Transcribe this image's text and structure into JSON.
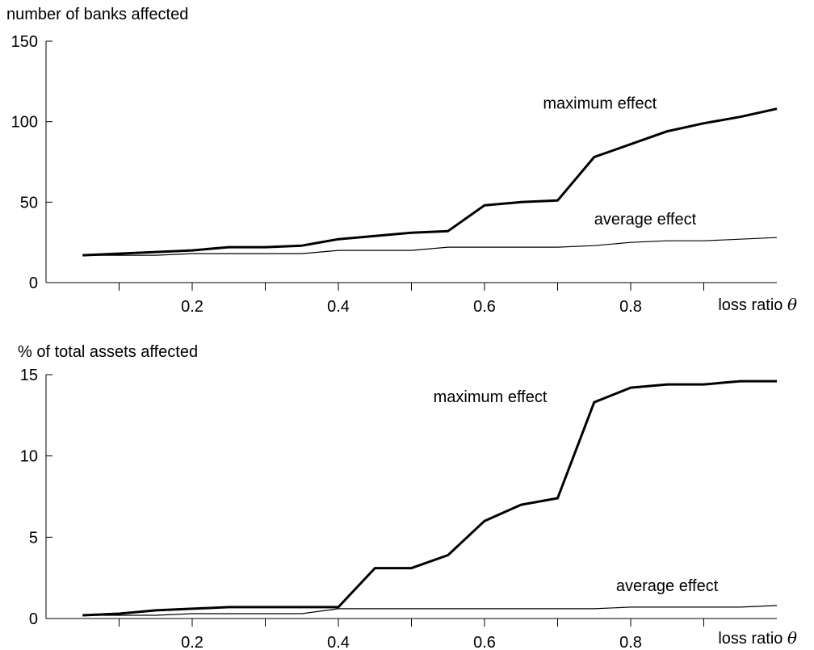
{
  "chart_data": [
    {
      "type": "line",
      "ylabel": "number of banks affected",
      "xlabel": "loss ratio",
      "xlabel_symbol": "θ",
      "xlim": [
        0.0,
        1.0
      ],
      "ylim": [
        0,
        150
      ],
      "xticks": [
        0.2,
        0.4,
        0.6,
        0.8
      ],
      "xtick_labels": [
        "0.2",
        "0.4",
        "0.6",
        "0.8"
      ],
      "xticks_minor": [
        0.1,
        0.3,
        0.5,
        0.7,
        0.9
      ],
      "yticks": [
        0,
        50,
        100,
        150
      ],
      "ytick_labels": [
        "0",
        "50",
        "100",
        "150"
      ],
      "grid": false,
      "x": [
        0.05,
        0.1,
        0.15,
        0.2,
        0.25,
        0.3,
        0.35,
        0.4,
        0.45,
        0.5,
        0.55,
        0.6,
        0.65,
        0.7,
        0.75,
        0.8,
        0.85,
        0.9,
        0.95,
        1.0
      ],
      "series": [
        {
          "name": "maximum effect",
          "style": "thick",
          "values": [
            17,
            18,
            19,
            20,
            22,
            22,
            23,
            27,
            29,
            31,
            32,
            48,
            50,
            51,
            78,
            86,
            94,
            99,
            103,
            108
          ],
          "label_anchor": {
            "x": 0.68,
            "y": 108
          }
        },
        {
          "name": "average effect",
          "style": "thin",
          "values": [
            17,
            17,
            17,
            18,
            18,
            18,
            18,
            20,
            20,
            20,
            22,
            22,
            22,
            22,
            23,
            25,
            26,
            26,
            27,
            28
          ],
          "label_anchor": {
            "x": 0.75,
            "y": 36
          }
        }
      ]
    },
    {
      "type": "line",
      "ylabel": "% of total assets affected",
      "xlabel": "loss ratio",
      "xlabel_symbol": "θ",
      "xlim": [
        0.0,
        1.0
      ],
      "ylim": [
        0,
        15
      ],
      "xticks": [
        0.2,
        0.4,
        0.6,
        0.8
      ],
      "xtick_labels": [
        "0.2",
        "0.4",
        "0.6",
        "0.8"
      ],
      "xticks_minor": [
        0.1,
        0.3,
        0.5,
        0.7,
        0.9
      ],
      "yticks": [
        0,
        5,
        10,
        15
      ],
      "ytick_labels": [
        "0",
        "5",
        "10",
        "15"
      ],
      "grid": false,
      "x": [
        0.05,
        0.1,
        0.15,
        0.2,
        0.25,
        0.3,
        0.35,
        0.4,
        0.45,
        0.5,
        0.55,
        0.6,
        0.65,
        0.7,
        0.75,
        0.8,
        0.85,
        0.9,
        0.95,
        1.0
      ],
      "series": [
        {
          "name": "maximum effect",
          "style": "thick",
          "values": [
            0.2,
            0.3,
            0.5,
            0.6,
            0.7,
            0.7,
            0.7,
            0.7,
            3.1,
            3.1,
            3.9,
            6.0,
            7.0,
            7.4,
            13.3,
            14.2,
            14.4,
            14.4,
            14.6,
            14.6
          ],
          "label_anchor": {
            "x": 0.53,
            "y": 13.3
          }
        },
        {
          "name": "average effect",
          "style": "thin",
          "values": [
            0.2,
            0.2,
            0.2,
            0.3,
            0.3,
            0.3,
            0.3,
            0.6,
            0.6,
            0.6,
            0.6,
            0.6,
            0.6,
            0.6,
            0.6,
            0.7,
            0.7,
            0.7,
            0.7,
            0.8
          ],
          "label_anchor": {
            "x": 0.78,
            "y": 1.7
          }
        }
      ]
    }
  ]
}
